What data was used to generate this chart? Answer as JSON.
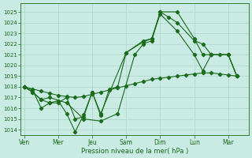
{
  "background_color": "#caeae4",
  "grid_color": "#b0d8ce",
  "line_color": "#1a6b1a",
  "marker_color": "#1a6b1a",
  "xlabel": "Pression niveau de la mer( hPa )",
  "ylim": [
    1013.5,
    1025.8
  ],
  "yticks": [
    1014,
    1015,
    1016,
    1017,
    1018,
    1019,
    1020,
    1021,
    1022,
    1023,
    1024,
    1025
  ],
  "xtick_labels": [
    "Ven",
    "Mer",
    "Jeu",
    "Sam",
    "Dim",
    "Lun",
    "Mar"
  ],
  "xtick_positions": [
    0,
    2,
    4,
    6,
    8,
    10,
    12
  ],
  "xlim": [
    -0.2,
    13.2
  ],
  "s1_x": [
    0,
    0.5,
    1.0,
    1.5,
    2.0,
    2.5,
    3.0,
    3.5,
    4.0,
    4.5,
    5.0,
    5.5,
    6.0,
    6.5,
    7.0,
    7.5,
    8.0,
    8.5,
    9.0,
    9.5,
    10.0,
    10.5,
    11.0,
    11.5,
    12.0,
    12.5
  ],
  "s1_y": [
    1018.0,
    1017.8,
    1017.6,
    1017.4,
    1017.2,
    1017.1,
    1017.0,
    1017.1,
    1017.3,
    1017.5,
    1017.7,
    1017.9,
    1018.1,
    1018.3,
    1018.5,
    1018.7,
    1018.8,
    1018.9,
    1019.0,
    1019.1,
    1019.2,
    1019.3,
    1019.3,
    1019.2,
    1019.1,
    1019.0
  ],
  "s2_x": [
    0,
    0.5,
    1.0,
    1.5,
    2.0,
    2.5,
    3.0,
    3.5,
    4.0,
    4.5,
    5.0,
    5.5,
    6.0,
    7.0,
    7.5,
    8.0,
    9.0,
    10.0,
    10.5,
    11.0,
    12.0,
    12.5
  ],
  "s2_y": [
    1018.0,
    1017.7,
    1016.0,
    1016.5,
    1016.5,
    1017.0,
    1015.0,
    1015.2,
    1017.5,
    1015.3,
    1017.8,
    1018.0,
    1021.2,
    1022.3,
    1022.5,
    1024.8,
    1023.2,
    1021.0,
    1019.5,
    1021.0,
    1021.0,
    1019.0
  ],
  "s3_x": [
    0,
    0.5,
    1.0,
    1.5,
    2.0,
    2.5,
    3.0,
    3.5,
    4.0,
    4.5,
    6.0,
    7.0,
    7.5,
    8.0,
    9.0,
    10.0,
    10.5,
    11.0,
    12.0,
    12.5
  ],
  "s3_y": [
    1018.0,
    1017.5,
    1016.8,
    1016.5,
    1016.7,
    1015.5,
    1013.8,
    1015.4,
    1017.5,
    1015.5,
    1021.2,
    1022.2,
    1022.5,
    1025.0,
    1025.0,
    1022.5,
    1021.0,
    1021.0,
    1021.0,
    1019.0
  ],
  "s4_x": [
    0,
    0.5,
    1.0,
    1.5,
    2.5,
    3.5,
    4.5,
    5.5,
    6.5,
    7.0,
    7.5,
    8.0,
    8.5,
    9.0,
    10.0,
    10.5,
    11.0,
    11.5,
    12.0,
    12.5
  ],
  "s4_y": [
    1018.0,
    1017.5,
    1016.8,
    1017.0,
    1016.5,
    1015.0,
    1014.8,
    1015.5,
    1021.0,
    1022.0,
    1022.3,
    1025.0,
    1024.5,
    1024.0,
    1022.3,
    1022.0,
    1021.0,
    1021.0,
    1021.0,
    1019.0
  ]
}
